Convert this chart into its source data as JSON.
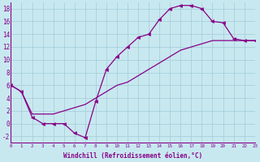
{
  "xlabel": "Windchill (Refroidissement éolien,°C)",
  "xlim": [
    0,
    23
  ],
  "ylim": [
    -3,
    19
  ],
  "xticks": [
    0,
    1,
    2,
    3,
    4,
    5,
    6,
    7,
    8,
    9,
    10,
    11,
    12,
    13,
    14,
    15,
    16,
    17,
    18,
    19,
    20,
    21,
    22,
    23
  ],
  "yticks": [
    -2,
    0,
    2,
    4,
    6,
    8,
    10,
    12,
    14,
    16,
    18
  ],
  "bg_color": "#c8e8f0",
  "grid_color": "#a0ccd8",
  "line_color": "#880088",
  "upper_x": [
    0,
    1,
    2,
    3,
    4,
    5,
    6,
    7,
    8,
    9,
    10,
    11,
    12,
    13,
    14,
    15,
    16,
    17,
    18,
    19,
    20,
    21,
    22,
    23
  ],
  "upper_y": [
    6,
    5,
    1,
    0,
    0,
    0,
    -1.5,
    -2.2,
    3.5,
    8.5,
    10.5,
    12.0,
    13.5,
    14.0,
    16.3,
    18.0,
    18.5,
    18.5,
    18.0,
    16.0,
    15.8,
    13.3,
    13.0,
    13.0
  ],
  "lower_x": [
    0,
    1,
    2,
    3,
    4,
    5,
    6,
    7,
    8,
    9,
    10,
    11,
    12,
    13,
    14,
    15,
    16,
    17,
    18,
    19,
    20,
    21,
    22,
    23
  ],
  "lower_y": [
    6,
    5,
    1.5,
    1.5,
    1.5,
    2.0,
    2.5,
    3.0,
    4.0,
    5.0,
    6.0,
    6.5,
    7.5,
    8.5,
    9.5,
    10.5,
    11.5,
    12.0,
    12.5,
    13.0,
    13.0,
    13.0,
    13.0,
    13.0
  ]
}
